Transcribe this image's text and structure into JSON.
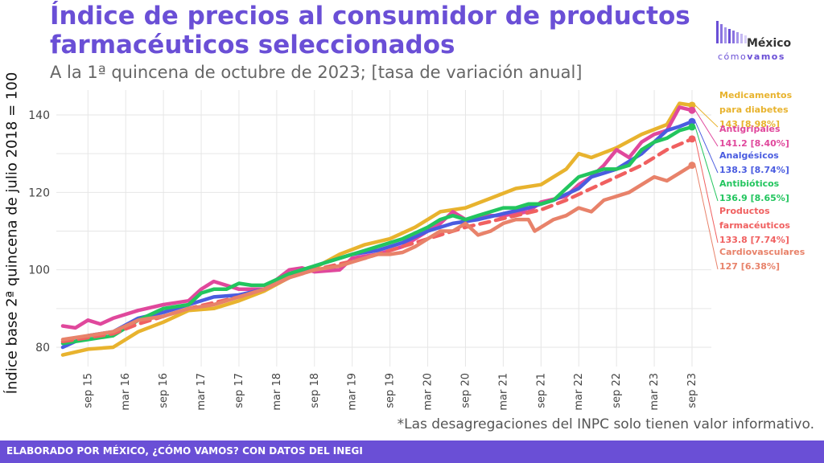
{
  "header": {
    "title": "Índice de precios al consumidor de productos farmacéuticos seleccionados",
    "subtitle": "A la 1ª quincena de octubre de 2023; [tasa de variación anual]"
  },
  "logo": {
    "name": "México",
    "tagline_pre": "cómo",
    "tagline_bold": "vamos"
  },
  "note": "*Las desagregaciones del INPC solo tienen valor informativo.",
  "footer": {
    "text": "ELABORADO POR MÉXICO, ¿CÓMO VAMOS? CON DATOS DEL INEGI"
  },
  "chart_data": {
    "type": "line",
    "title": "Índice de precios al consumidor de productos farmacéuticos seleccionados",
    "subtitle": "A la 1ª quincena de octubre de 2023; [tasa de variación anual]",
    "xlabel": "",
    "ylabel": "Índice base 2ª quincena de julio 2018 = 100",
    "ylim": [
      76,
      146
    ],
    "yticks": [
      80,
      100,
      120,
      140
    ],
    "x_index_range": [
      0,
      100
    ],
    "x_ticks": [
      {
        "i": 4,
        "label": "sep 15"
      },
      {
        "i": 10,
        "label": "mar 16"
      },
      {
        "i": 16,
        "label": "sep 16"
      },
      {
        "i": 22,
        "label": "mar 17"
      },
      {
        "i": 28,
        "label": "sep 17"
      },
      {
        "i": 34,
        "label": "mar 18"
      },
      {
        "i": 40,
        "label": "sep 18"
      },
      {
        "i": 46,
        "label": "mar 19"
      },
      {
        "i": 52,
        "label": "sep 19"
      },
      {
        "i": 58,
        "label": "mar 20"
      },
      {
        "i": 64,
        "label": "sep 20"
      },
      {
        "i": 70,
        "label": "mar 21"
      },
      {
        "i": 76,
        "label": "sep 21"
      },
      {
        "i": 82,
        "label": "mar 22"
      },
      {
        "i": 88,
        "label": "sep 22"
      },
      {
        "i": 94,
        "label": "mar 23"
      },
      {
        "i": 100,
        "label": "sep 23"
      }
    ],
    "grid": true,
    "legend": "direct labels at right",
    "series": [
      {
        "name": "Medicamentos para diabetes",
        "label_lines": [
          "Medicamentos",
          "para diabetes",
          "143 [8.98%]"
        ],
        "color": "#e8b32e",
        "dashed": false,
        "points": [
          [
            0,
            78
          ],
          [
            4,
            79.5
          ],
          [
            8,
            80
          ],
          [
            12,
            84
          ],
          [
            16,
            86.5
          ],
          [
            20,
            89.5
          ],
          [
            24,
            90
          ],
          [
            28,
            92
          ],
          [
            32,
            94.5
          ],
          [
            36,
            98
          ],
          [
            40,
            100.5
          ],
          [
            44,
            104
          ],
          [
            48,
            106.5
          ],
          [
            52,
            108
          ],
          [
            56,
            111
          ],
          [
            60,
            115
          ],
          [
            64,
            116
          ],
          [
            68,
            118.5
          ],
          [
            72,
            121
          ],
          [
            76,
            122
          ],
          [
            80,
            126
          ],
          [
            82,
            130
          ],
          [
            84,
            129
          ],
          [
            88,
            131.5
          ],
          [
            92,
            135
          ],
          [
            96,
            137.5
          ],
          [
            98,
            143
          ],
          [
            100,
            142.5
          ]
        ]
      },
      {
        "name": "Antigripales",
        "label_lines": [
          "Antigripales",
          "141.2 [8.40%]"
        ],
        "color": "#e0489c",
        "dashed": false,
        "points": [
          [
            0,
            85.5
          ],
          [
            2,
            85
          ],
          [
            4,
            87
          ],
          [
            6,
            86
          ],
          [
            8,
            87.5
          ],
          [
            12,
            89.5
          ],
          [
            16,
            91
          ],
          [
            20,
            92
          ],
          [
            22,
            95
          ],
          [
            24,
            97
          ],
          [
            28,
            95
          ],
          [
            32,
            95
          ],
          [
            36,
            100
          ],
          [
            38,
            100.5
          ],
          [
            40,
            99.5
          ],
          [
            44,
            100
          ],
          [
            46,
            103
          ],
          [
            50,
            104
          ],
          [
            54,
            106
          ],
          [
            58,
            110
          ],
          [
            60,
            112
          ],
          [
            62,
            115
          ],
          [
            64,
            113
          ],
          [
            68,
            114
          ],
          [
            70,
            114
          ],
          [
            74,
            115
          ],
          [
            76,
            117.5
          ],
          [
            80,
            119
          ],
          [
            82,
            122
          ],
          [
            84,
            124
          ],
          [
            86,
            127
          ],
          [
            88,
            131
          ],
          [
            90,
            129
          ],
          [
            92,
            133
          ],
          [
            94,
            135
          ],
          [
            96,
            136
          ],
          [
            98,
            142
          ],
          [
            100,
            141.2
          ]
        ]
      },
      {
        "name": "Analgésicos",
        "label_lines": [
          "Analgésicos",
          "138.3 [8.74%]"
        ],
        "color": "#4a5ce0",
        "dashed": false,
        "points": [
          [
            0,
            80
          ],
          [
            4,
            83
          ],
          [
            8,
            84
          ],
          [
            12,
            87.5
          ],
          [
            16,
            89
          ],
          [
            20,
            91
          ],
          [
            24,
            93
          ],
          [
            28,
            93.5
          ],
          [
            32,
            95
          ],
          [
            36,
            98
          ],
          [
            38,
            99.5
          ],
          [
            40,
            101
          ],
          [
            42,
            102
          ],
          [
            44,
            103
          ],
          [
            46,
            104
          ],
          [
            50,
            105
          ],
          [
            54,
            107
          ],
          [
            58,
            110
          ],
          [
            62,
            112
          ],
          [
            66,
            113
          ],
          [
            70,
            114.5
          ],
          [
            74,
            116
          ],
          [
            78,
            118
          ],
          [
            82,
            121
          ],
          [
            84,
            124
          ],
          [
            86,
            125
          ],
          [
            88,
            126
          ],
          [
            90,
            128
          ],
          [
            92,
            130
          ],
          [
            94,
            133
          ],
          [
            96,
            136
          ],
          [
            98,
            137
          ],
          [
            100,
            138.3
          ]
        ]
      },
      {
        "name": "Antibióticos",
        "label_lines": [
          "Antibióticos",
          "136.9 [8.65%]"
        ],
        "color": "#22c55e",
        "dashed": false,
        "points": [
          [
            0,
            81
          ],
          [
            4,
            82
          ],
          [
            8,
            83
          ],
          [
            12,
            87
          ],
          [
            16,
            90
          ],
          [
            20,
            91
          ],
          [
            22,
            94
          ],
          [
            24,
            95
          ],
          [
            26,
            95
          ],
          [
            28,
            96.5
          ],
          [
            30,
            96
          ],
          [
            32,
            96
          ],
          [
            36,
            99
          ],
          [
            40,
            101
          ],
          [
            44,
            103
          ],
          [
            48,
            105
          ],
          [
            50,
            106
          ],
          [
            54,
            108
          ],
          [
            58,
            111
          ],
          [
            60,
            113
          ],
          [
            62,
            114
          ],
          [
            64,
            113
          ],
          [
            66,
            114
          ],
          [
            68,
            115
          ],
          [
            70,
            116
          ],
          [
            72,
            116
          ],
          [
            74,
            117
          ],
          [
            76,
            117
          ],
          [
            78,
            118
          ],
          [
            80,
            121
          ],
          [
            82,
            124
          ],
          [
            84,
            125
          ],
          [
            86,
            126
          ],
          [
            88,
            126
          ],
          [
            90,
            127
          ],
          [
            92,
            131
          ],
          [
            94,
            133
          ],
          [
            96,
            134
          ],
          [
            98,
            136
          ],
          [
            100,
            136.9
          ]
        ]
      },
      {
        "name": "Productos farmacéuticos",
        "label_lines": [
          "Productos",
          "farmacéuticos",
          "133.8 [7.74%]"
        ],
        "color": "#f06060",
        "dashed": true,
        "points": [
          [
            0,
            81.5
          ],
          [
            4,
            82.5
          ],
          [
            8,
            83.5
          ],
          [
            12,
            86
          ],
          [
            16,
            88
          ],
          [
            20,
            90
          ],
          [
            24,
            91.5
          ],
          [
            28,
            93
          ],
          [
            32,
            95
          ],
          [
            36,
            98
          ],
          [
            40,
            100
          ],
          [
            44,
            101.5
          ],
          [
            48,
            103
          ],
          [
            52,
            105
          ],
          [
            56,
            107
          ],
          [
            60,
            109
          ],
          [
            64,
            111
          ],
          [
            68,
            112.5
          ],
          [
            72,
            114
          ],
          [
            76,
            115.5
          ],
          [
            80,
            118
          ],
          [
            84,
            121
          ],
          [
            88,
            124
          ],
          [
            92,
            127
          ],
          [
            96,
            131
          ],
          [
            100,
            133.8
          ]
        ]
      },
      {
        "name": "Cardiovasculares",
        "label_lines": [
          "Cardiovasculares",
          "127 [6.38%]"
        ],
        "color": "#e8826a",
        "dashed": false,
        "points": [
          [
            0,
            82
          ],
          [
            4,
            83
          ],
          [
            8,
            84
          ],
          [
            12,
            87
          ],
          [
            16,
            88
          ],
          [
            20,
            90
          ],
          [
            24,
            91
          ],
          [
            28,
            93
          ],
          [
            32,
            95
          ],
          [
            36,
            98
          ],
          [
            38,
            99
          ],
          [
            40,
            100
          ],
          [
            42,
            100.5
          ],
          [
            44,
            101
          ],
          [
            46,
            102
          ],
          [
            48,
            103
          ],
          [
            50,
            104
          ],
          [
            52,
            104
          ],
          [
            54,
            104.5
          ],
          [
            56,
            106
          ],
          [
            58,
            108
          ],
          [
            60,
            110
          ],
          [
            62,
            110
          ],
          [
            64,
            112
          ],
          [
            66,
            109
          ],
          [
            68,
            110
          ],
          [
            70,
            112
          ],
          [
            72,
            113
          ],
          [
            74,
            113
          ],
          [
            75,
            110
          ],
          [
            76,
            111
          ],
          [
            78,
            113
          ],
          [
            80,
            114
          ],
          [
            82,
            116
          ],
          [
            84,
            115
          ],
          [
            86,
            118
          ],
          [
            88,
            119
          ],
          [
            90,
            120
          ],
          [
            92,
            122
          ],
          [
            94,
            124
          ],
          [
            96,
            123
          ],
          [
            98,
            125
          ],
          [
            100,
            127
          ]
        ]
      }
    ]
  }
}
